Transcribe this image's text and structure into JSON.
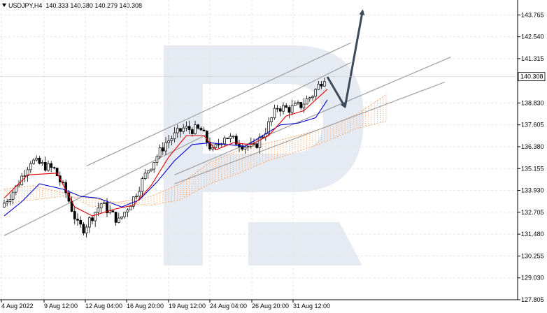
{
  "header": {
    "symbol": "USDJPY,H4",
    "ohlc": "140.333 140.380 140.279 140.308"
  },
  "colors": {
    "bull": "#000000",
    "bear": "#000000",
    "tenkan": "#e00000",
    "kijun": "#0000cc",
    "cloud": "#f4a060",
    "channel": "#a0a0a0",
    "arrow": "#3d4a5a",
    "watermark": "#e6eaf3"
  },
  "chart_data": {
    "type": "candlestick",
    "symbol": "USDJPY",
    "timeframe": "H4",
    "ylim": [
      127.805,
      144.6
    ],
    "y_ticks": [
      "143.765",
      "142.540",
      "141.315",
      "140.308",
      "138.830",
      "137.605",
      "136.380",
      "135.155",
      "133.930",
      "132.705",
      "131.480",
      "130.255",
      "129.030",
      "127.805"
    ],
    "x_ticks": [
      "4 Aug 2022",
      "9 Aug 12:00",
      "12 Aug 04:00",
      "16 Aug 20:00",
      "19 Aug 12:00",
      "24 Aug 04:00",
      "26 Aug 20:00",
      "31 Aug 12:00"
    ],
    "current_price": 140.308,
    "candle_count": 110,
    "close_path": [
      [
        0,
        133.0
      ],
      [
        5,
        134.1
      ],
      [
        10,
        135.6
      ],
      [
        18,
        135.1
      ],
      [
        22,
        133.8
      ],
      [
        26,
        132.0
      ],
      [
        28,
        131.8
      ],
      [
        34,
        133.2
      ],
      [
        40,
        132.2
      ],
      [
        45,
        133.5
      ],
      [
        50,
        135.1
      ],
      [
        56,
        136.6
      ],
      [
        62,
        137.4
      ],
      [
        68,
        137.3
      ],
      [
        72,
        136.1
      ],
      [
        76,
        137.0
      ],
      [
        82,
        136.5
      ],
      [
        86,
        136.3
      ],
      [
        90,
        137.3
      ],
      [
        94,
        138.6
      ],
      [
        98,
        138.5
      ],
      [
        102,
        138.7
      ],
      [
        106,
        139.3
      ],
      [
        110,
        140.3
      ]
    ],
    "tenkan_path": [
      [
        0,
        133.5
      ],
      [
        8,
        134.8
      ],
      [
        18,
        134.9
      ],
      [
        24,
        133.0
      ],
      [
        30,
        132.5
      ],
      [
        38,
        132.9
      ],
      [
        44,
        133.1
      ],
      [
        50,
        134.2
      ],
      [
        56,
        135.8
      ],
      [
        62,
        137.0
      ],
      [
        68,
        137.0
      ],
      [
        72,
        136.2
      ],
      [
        78,
        136.6
      ],
      [
        84,
        136.5
      ],
      [
        90,
        137.0
      ],
      [
        96,
        138.1
      ],
      [
        102,
        138.4
      ],
      [
        110,
        139.6
      ]
    ],
    "kijun_path": [
      [
        0,
        132.5
      ],
      [
        6,
        133.3
      ],
      [
        12,
        134.3
      ],
      [
        20,
        134.0
      ],
      [
        26,
        133.6
      ],
      [
        32,
        133.5
      ],
      [
        40,
        133.0
      ],
      [
        46,
        133.4
      ],
      [
        52,
        134.4
      ],
      [
        58,
        135.6
      ],
      [
        64,
        136.5
      ],
      [
        70,
        136.6
      ],
      [
        76,
        136.5
      ],
      [
        82,
        136.4
      ],
      [
        88,
        137.0
      ],
      [
        94,
        137.6
      ],
      [
        100,
        137.7
      ],
      [
        106,
        138.0
      ],
      [
        110,
        139.0
      ]
    ],
    "cloud_span_a": [
      [
        0,
        134.0
      ],
      [
        10,
        134.2
      ],
      [
        20,
        133.8
      ],
      [
        30,
        133.0
      ],
      [
        40,
        133.3
      ],
      [
        50,
        133.6
      ],
      [
        60,
        134.3
      ],
      [
        70,
        135.5
      ],
      [
        80,
        136.2
      ],
      [
        90,
        136.6
      ],
      [
        100,
        137.0
      ],
      [
        110,
        137.5
      ],
      [
        120,
        138.2
      ],
      [
        130,
        139.3
      ]
    ],
    "cloud_span_b": [
      [
        0,
        133.2
      ],
      [
        10,
        133.4
      ],
      [
        20,
        133.6
      ],
      [
        30,
        133.5
      ],
      [
        40,
        133.2
      ],
      [
        50,
        133.1
      ],
      [
        60,
        133.4
      ],
      [
        70,
        134.3
      ],
      [
        80,
        134.9
      ],
      [
        90,
        135.6
      ],
      [
        100,
        136.1
      ],
      [
        110,
        136.7
      ],
      [
        120,
        137.4
      ],
      [
        130,
        137.8
      ]
    ],
    "channel_lines": [
      {
        "from": [
          28,
          135.3
        ],
        "to": [
          118,
          142.2
        ]
      },
      {
        "from": [
          0,
          131.4
        ],
        "to": [
          118,
          141.1
        ]
      },
      {
        "from": [
          58,
          134.8
        ],
        "to": [
          152,
          141.4
        ]
      },
      {
        "from": [
          58,
          134.3
        ],
        "to": [
          150,
          140.0
        ]
      }
    ],
    "forecast_arrows": [
      {
        "from": [
          110,
          140.3
        ],
        "to": [
          116,
          138.6
        ]
      },
      {
        "from": [
          116,
          138.6
        ],
        "to": [
          122,
          144.0
        ]
      }
    ]
  }
}
